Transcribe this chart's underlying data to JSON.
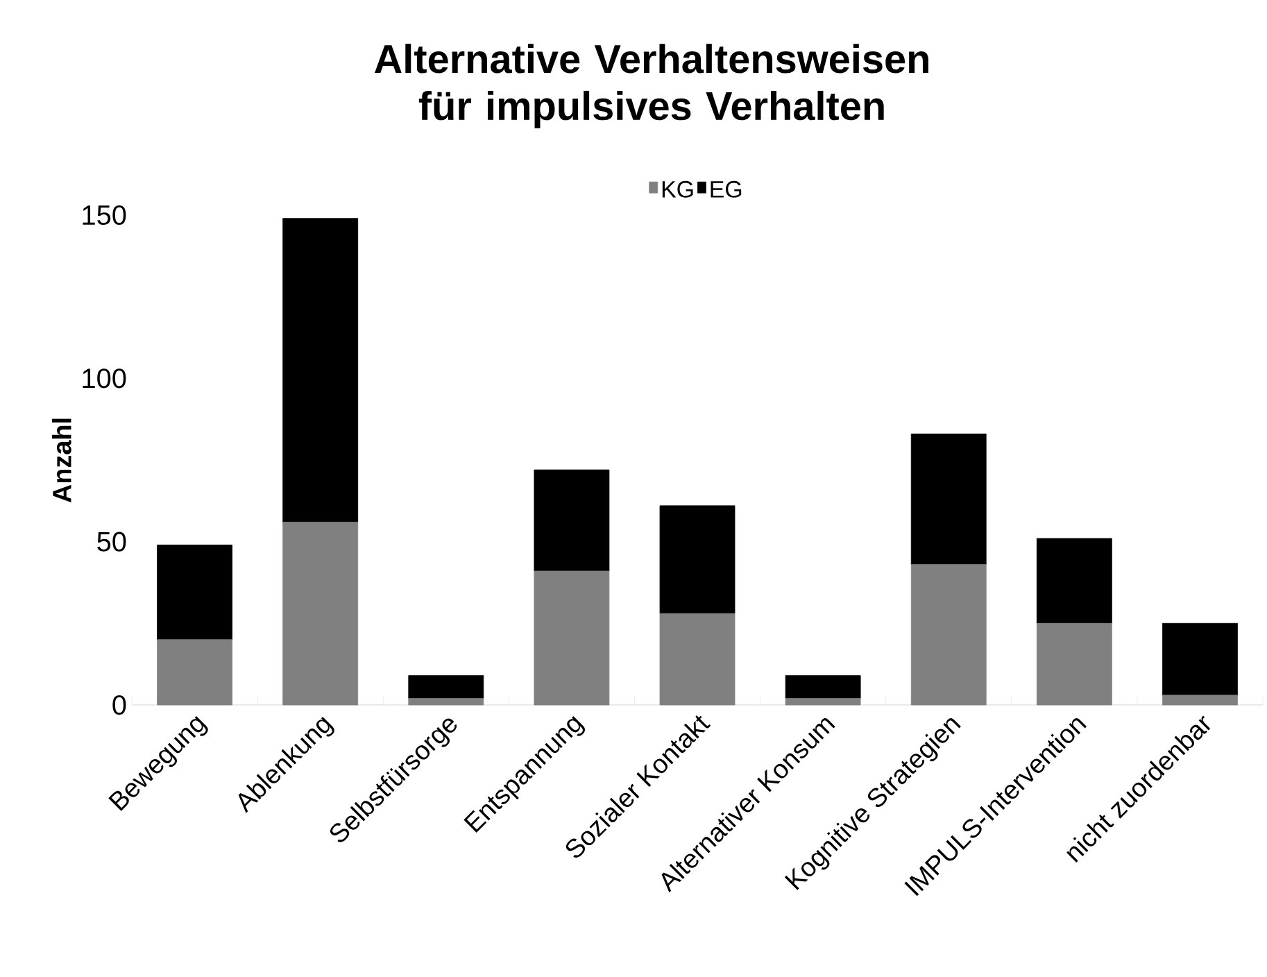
{
  "chart_data": {
    "type": "bar",
    "title": "Alternative Verhaltensweisen für impulsives Verhalten",
    "ylabel": "Anzahl",
    "categories": [
      "Bewegung",
      "Ablenkung",
      "Selbstfürsorge",
      "Entspannung",
      "Sozialer Kontakt",
      "Alternativer Konsum",
      "Kognitive Strategien",
      "IMPULS-Intervention",
      "nicht zuordenbar"
    ],
    "stacked": true,
    "series": [
      {
        "name": "KG",
        "color": "#808080",
        "values": [
          20,
          56,
          2,
          41,
          28,
          2,
          43,
          25,
          3
        ]
      },
      {
        "name": "EG",
        "color": "#000000",
        "values": [
          29,
          93,
          7,
          31,
          33,
          7,
          40,
          26,
          22
        ]
      }
    ],
    "ylim": [
      0,
      150
    ],
    "yticks": [
      0,
      50,
      100,
      150
    ],
    "legend": "top"
  }
}
